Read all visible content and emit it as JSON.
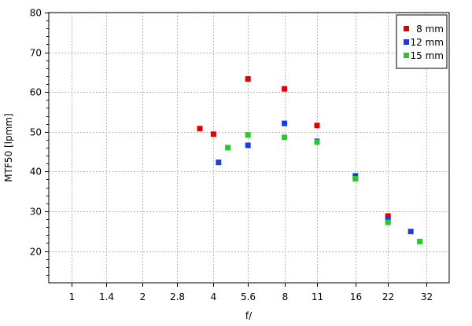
{
  "chart_data": {
    "type": "scatter",
    "title": "",
    "xlabel": "f/",
    "ylabel": "MTF50 [lpmm]",
    "x_scale": "log",
    "xlim": [
      0.8,
      40
    ],
    "ylim": [
      12,
      80
    ],
    "x_ticks": [
      1,
      1.4,
      2,
      2.8,
      4,
      5.6,
      8,
      11,
      16,
      22,
      32
    ],
    "x_tick_labels": [
      "1",
      "1.4",
      "2",
      "2.8",
      "4",
      "5.6",
      "8",
      "11",
      "16",
      "22",
      "32"
    ],
    "y_ticks": [
      20,
      30,
      40,
      50,
      60,
      70,
      80
    ],
    "y_tick_labels": [
      "20",
      "30",
      "40",
      "50",
      "60",
      "70",
      "80"
    ],
    "grid": true,
    "legend_position": "top-right",
    "series": [
      {
        "name": "8 mm",
        "color": "#e00000",
        "x": [
          3.5,
          4,
          5.6,
          8,
          11,
          22
        ],
        "y": [
          50.8,
          49.4,
          63.3,
          60.8,
          51.6,
          28.8
        ]
      },
      {
        "name": "12 mm",
        "color": "#1a3fd6",
        "x": [
          4.2,
          5.6,
          8,
          11,
          16,
          22,
          27.5
        ],
        "y": [
          42.3,
          46.6,
          52.1,
          47.6,
          38.9,
          28.0,
          24.9
        ]
      },
      {
        "name": "15 mm",
        "color": "#2fc42f",
        "x": [
          4.6,
          5.6,
          8,
          11,
          16,
          22,
          30
        ],
        "y": [
          46.0,
          49.2,
          48.6,
          47.4,
          38.2,
          27.2,
          22.4
        ]
      }
    ]
  }
}
